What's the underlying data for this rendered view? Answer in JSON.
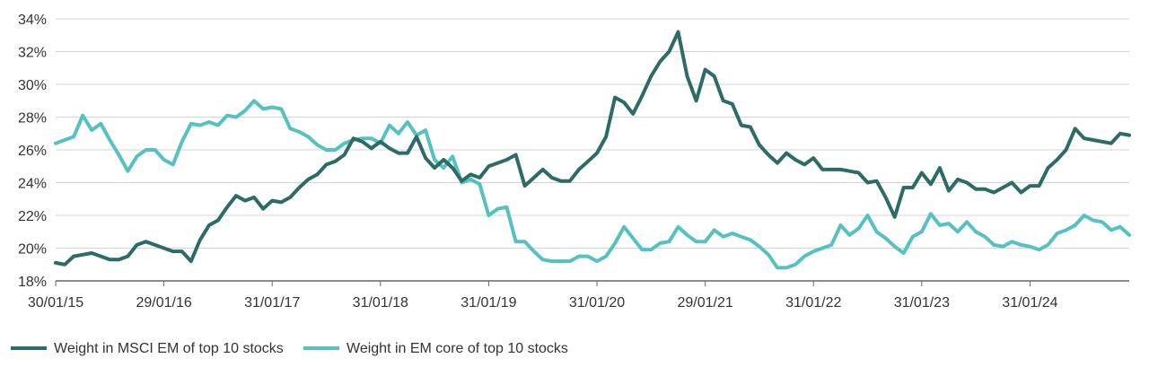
{
  "chart_data": {
    "type": "line",
    "ylim": [
      18,
      34
    ],
    "y_ticks": [
      "18%",
      "20%",
      "22%",
      "24%",
      "26%",
      "28%",
      "30%",
      "32%",
      "34%"
    ],
    "y_tick_values": [
      18,
      20,
      22,
      24,
      26,
      28,
      30,
      32,
      34
    ],
    "x_ticks": [
      "30/01/15",
      "29/01/16",
      "31/01/17",
      "31/01/18",
      "31/01/19",
      "31/01/20",
      "29/01/21",
      "31/01/22",
      "31/01/23",
      "31/01/24"
    ],
    "x_tick_values": [
      0,
      12,
      24,
      36,
      48,
      60,
      72,
      84,
      96,
      108
    ],
    "x_range": [
      0,
      119
    ],
    "grid": "horizontal",
    "legend": "bottom-left",
    "colors": {
      "series1": "#2d6b66",
      "series2": "#56c1c1",
      "axis": "#666666"
    },
    "series": [
      {
        "name": "Weight in MSCI EM of top 10 stocks",
        "values": [
          19.1,
          19.0,
          19.5,
          19.6,
          19.7,
          19.5,
          19.3,
          19.3,
          19.5,
          20.2,
          20.4,
          20.2,
          20.0,
          19.8,
          19.8,
          19.2,
          20.5,
          21.4,
          21.7,
          22.5,
          23.2,
          22.9,
          23.1,
          22.4,
          22.9,
          22.8,
          23.1,
          23.7,
          24.2,
          24.5,
          25.1,
          25.3,
          25.7,
          26.7,
          26.5,
          26.1,
          26.5,
          26.1,
          25.8,
          25.8,
          26.8,
          25.5,
          24.9,
          25.4,
          24.9,
          24.1,
          24.5,
          24.3,
          25.0,
          25.2,
          25.4,
          25.7,
          23.8,
          24.3,
          24.8,
          24.3,
          24.1,
          24.1,
          24.8,
          25.3,
          25.8,
          26.8,
          29.2,
          28.9,
          28.2,
          29.3,
          30.5,
          31.4,
          32.0,
          33.2,
          30.5,
          29.0,
          30.9,
          30.5,
          29.0,
          28.8,
          27.5,
          27.4,
          26.3,
          25.7,
          25.2,
          25.8,
          25.4,
          25.1,
          25.5,
          24.8,
          24.8,
          24.8,
          24.7,
          24.6,
          24.0,
          24.1,
          23.1,
          21.9,
          23.7,
          23.7,
          24.6,
          23.9,
          24.9,
          23.5,
          24.2,
          24.0,
          23.6,
          23.6,
          23.4,
          23.7,
          24.0,
          23.4,
          23.8,
          23.8,
          24.9,
          25.4,
          26.0,
          27.3,
          26.7,
          26.6,
          26.5,
          26.4,
          27.0,
          26.9
        ]
      },
      {
        "name": "Weight in EM core of top 10 stocks",
        "values": [
          26.4,
          26.6,
          26.8,
          28.1,
          27.2,
          27.6,
          26.6,
          25.7,
          24.7,
          25.6,
          26.0,
          26.0,
          25.4,
          25.1,
          26.5,
          27.6,
          27.5,
          27.7,
          27.5,
          28.1,
          28.0,
          28.4,
          29.0,
          28.5,
          28.6,
          28.5,
          27.3,
          27.1,
          26.8,
          26.3,
          26.0,
          26.0,
          26.4,
          26.6,
          26.7,
          26.7,
          26.4,
          27.5,
          27.0,
          27.7,
          26.9,
          27.2,
          25.4,
          24.9,
          25.6,
          24.0,
          24.2,
          23.9,
          22.0,
          22.4,
          22.5,
          20.4,
          20.4,
          19.8,
          19.3,
          19.2,
          19.2,
          19.2,
          19.5,
          19.5,
          19.2,
          19.5,
          20.3,
          21.3,
          20.6,
          19.9,
          19.9,
          20.3,
          20.4,
          21.3,
          20.8,
          20.4,
          20.4,
          21.1,
          20.7,
          20.9,
          20.7,
          20.5,
          20.1,
          19.6,
          18.8,
          18.8,
          19.0,
          19.5,
          19.8,
          20.0,
          20.2,
          21.4,
          20.8,
          21.2,
          22.0,
          21.0,
          20.6,
          20.1,
          19.7,
          20.7,
          21.0,
          22.1,
          21.4,
          21.5,
          21.0,
          21.6,
          21.0,
          20.7,
          20.2,
          20.1,
          20.4,
          20.2,
          20.1,
          19.9,
          20.2,
          20.9,
          21.1,
          21.4,
          22.0,
          21.7,
          21.6,
          21.1,
          21.3,
          20.8
        ]
      }
    ]
  }
}
